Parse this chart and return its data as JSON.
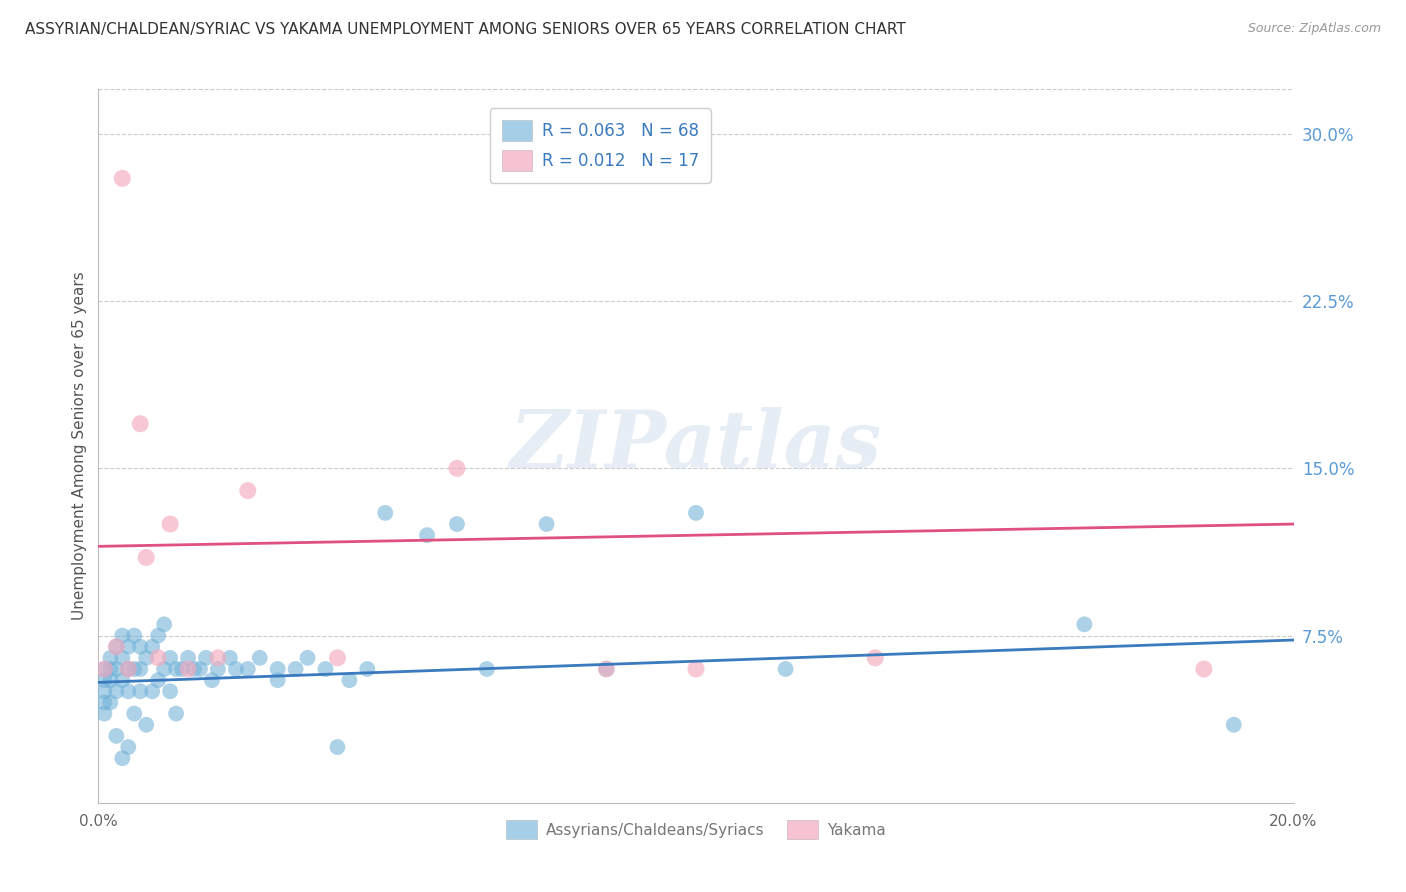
{
  "title": "ASSYRIAN/CHALDEAN/SYRIAC VS YAKAMA UNEMPLOYMENT AMONG SENIORS OVER 65 YEARS CORRELATION CHART",
  "source": "Source: ZipAtlas.com",
  "ylabel": "Unemployment Among Seniors over 65 years",
  "xlim": [
    0.0,
    0.2
  ],
  "ylim": [
    0.0,
    0.32
  ],
  "yticks_right": [
    0.075,
    0.15,
    0.225,
    0.3
  ],
  "ytick_labels_right": [
    "7.5%",
    "15.0%",
    "22.5%",
    "30.0%"
  ],
  "blue_color": "#6baed6",
  "pink_color": "#f4a9be",
  "trend_blue": "#3a7abf",
  "trend_pink": "#e05080",
  "legend_R_blue": "0.063",
  "legend_N_blue": "68",
  "legend_R_pink": "0.012",
  "legend_N_pink": "17",
  "label_blue": "Assyrians/Chaldeans/Syriacs",
  "label_pink": "Yakama",
  "blue_x": [
    0.001,
    0.001,
    0.001,
    0.001,
    0.001,
    0.002,
    0.002,
    0.002,
    0.002,
    0.003,
    0.003,
    0.003,
    0.003,
    0.004,
    0.004,
    0.004,
    0.004,
    0.005,
    0.005,
    0.005,
    0.005,
    0.006,
    0.006,
    0.006,
    0.007,
    0.007,
    0.007,
    0.008,
    0.008,
    0.009,
    0.009,
    0.01,
    0.01,
    0.011,
    0.011,
    0.012,
    0.012,
    0.013,
    0.013,
    0.014,
    0.015,
    0.016,
    0.017,
    0.018,
    0.019,
    0.02,
    0.022,
    0.023,
    0.025,
    0.027,
    0.03,
    0.03,
    0.033,
    0.035,
    0.038,
    0.04,
    0.042,
    0.045,
    0.048,
    0.055,
    0.06,
    0.065,
    0.075,
    0.085,
    0.1,
    0.115,
    0.165,
    0.19
  ],
  "blue_y": [
    0.06,
    0.055,
    0.05,
    0.045,
    0.04,
    0.065,
    0.06,
    0.055,
    0.045,
    0.07,
    0.06,
    0.05,
    0.03,
    0.075,
    0.065,
    0.055,
    0.02,
    0.07,
    0.06,
    0.05,
    0.025,
    0.075,
    0.06,
    0.04,
    0.07,
    0.06,
    0.05,
    0.065,
    0.035,
    0.07,
    0.05,
    0.075,
    0.055,
    0.08,
    0.06,
    0.065,
    0.05,
    0.06,
    0.04,
    0.06,
    0.065,
    0.06,
    0.06,
    0.065,
    0.055,
    0.06,
    0.065,
    0.06,
    0.06,
    0.065,
    0.06,
    0.055,
    0.06,
    0.065,
    0.06,
    0.025,
    0.055,
    0.06,
    0.13,
    0.12,
    0.125,
    0.06,
    0.125,
    0.06,
    0.13,
    0.06,
    0.08,
    0.035
  ],
  "pink_x": [
    0.001,
    0.003,
    0.004,
    0.005,
    0.007,
    0.008,
    0.01,
    0.012,
    0.015,
    0.02,
    0.025,
    0.04,
    0.06,
    0.085,
    0.1,
    0.13,
    0.185
  ],
  "pink_y": [
    0.06,
    0.07,
    0.28,
    0.06,
    0.17,
    0.11,
    0.065,
    0.125,
    0.06,
    0.065,
    0.14,
    0.065,
    0.15,
    0.06,
    0.06,
    0.065,
    0.06
  ],
  "blue_trend_x0": 0.0,
  "blue_trend_y0": 0.054,
  "blue_trend_x1": 0.2,
  "blue_trend_y1": 0.073,
  "pink_trend_x0": 0.0,
  "pink_trend_y0": 0.115,
  "pink_trend_x1": 0.2,
  "pink_trend_y1": 0.125,
  "watermark": "ZIPatlas",
  "background_color": "#ffffff",
  "grid_color": "#cccccc"
}
